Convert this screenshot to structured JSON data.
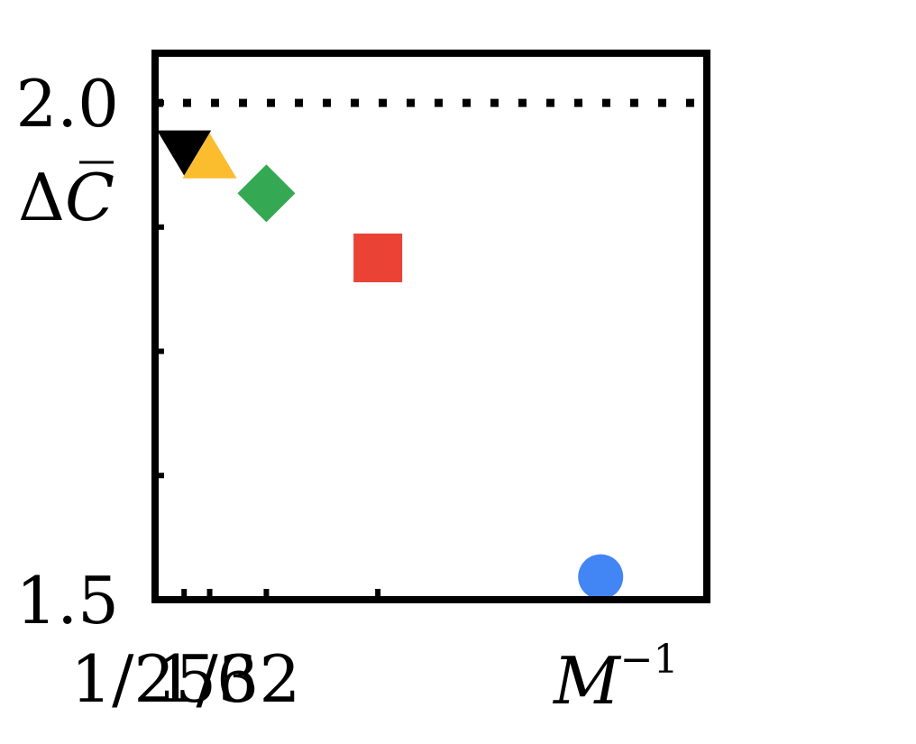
{
  "chart_data": {
    "type": "scatter",
    "title": "",
    "xlabel": {
      "base": "M",
      "exponent": "−1"
    },
    "ylabel": {
      "prefix": "Δ",
      "symbol": "C"
    },
    "xscale": "reciprocal",
    "xlim": [
      0,
      0.2375
    ],
    "ylim": [
      1.5,
      2.05
    ],
    "reference_line": {
      "y": 2.0,
      "style": "dotted",
      "color": "#000000"
    },
    "x_tick_labels": [
      {
        "value": 0.00390625,
        "label": "1/256"
      },
      {
        "value": 0.03125,
        "label": "1/32"
      }
    ],
    "x_ticks": [
      0.0125,
      0.0235,
      0.0479,
      0.0959,
      0.1918
    ],
    "y_tick_labels": [
      {
        "value": 2.0,
        "label": "2.0"
      },
      {
        "value": 1.5,
        "label": "1.5"
      }
    ],
    "y_ticks": [
      1.625,
      1.75,
      1.875
    ],
    "grid": false,
    "legend": "none",
    "points": [
      {
        "x": 0.0125,
        "y": 1.955,
        "marker": "triangle-down",
        "color": "#000000"
      },
      {
        "x": 0.0235,
        "y": 1.945,
        "marker": "triangle-up",
        "color": "#FBBC2E"
      },
      {
        "x": 0.0479,
        "y": 1.909,
        "marker": "diamond",
        "color": "#34A853"
      },
      {
        "x": 0.0959,
        "y": 1.844,
        "marker": "square",
        "color": "#EA4335"
      },
      {
        "x": 0.1918,
        "y": 1.523,
        "marker": "circle",
        "color": "#4285F4"
      }
    ]
  }
}
